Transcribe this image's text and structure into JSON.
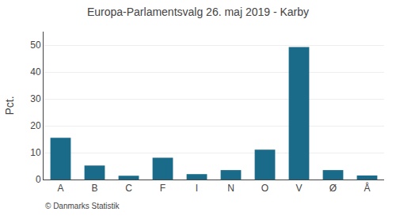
{
  "chart_data": {
    "type": "bar",
    "title": "Europa-Parlamentsvalg 26. maj 2019 - Karby",
    "ylabel": "Pct.",
    "annotations": [
      "© Danmarks Statistik"
    ],
    "categories": [
      "A",
      "B",
      "C",
      "F",
      "I",
      "N",
      "O",
      "V",
      "Ø",
      "Å"
    ],
    "values": [
      15.5,
      5.2,
      1.4,
      8.1,
      2.0,
      3.5,
      11.1,
      49.3,
      3.5,
      1.5
    ],
    "color": "#1a6b8a",
    "ylim": [
      0,
      55
    ],
    "yticks": [
      0,
      10,
      20,
      30,
      40,
      50
    ],
    "grid": true
  }
}
